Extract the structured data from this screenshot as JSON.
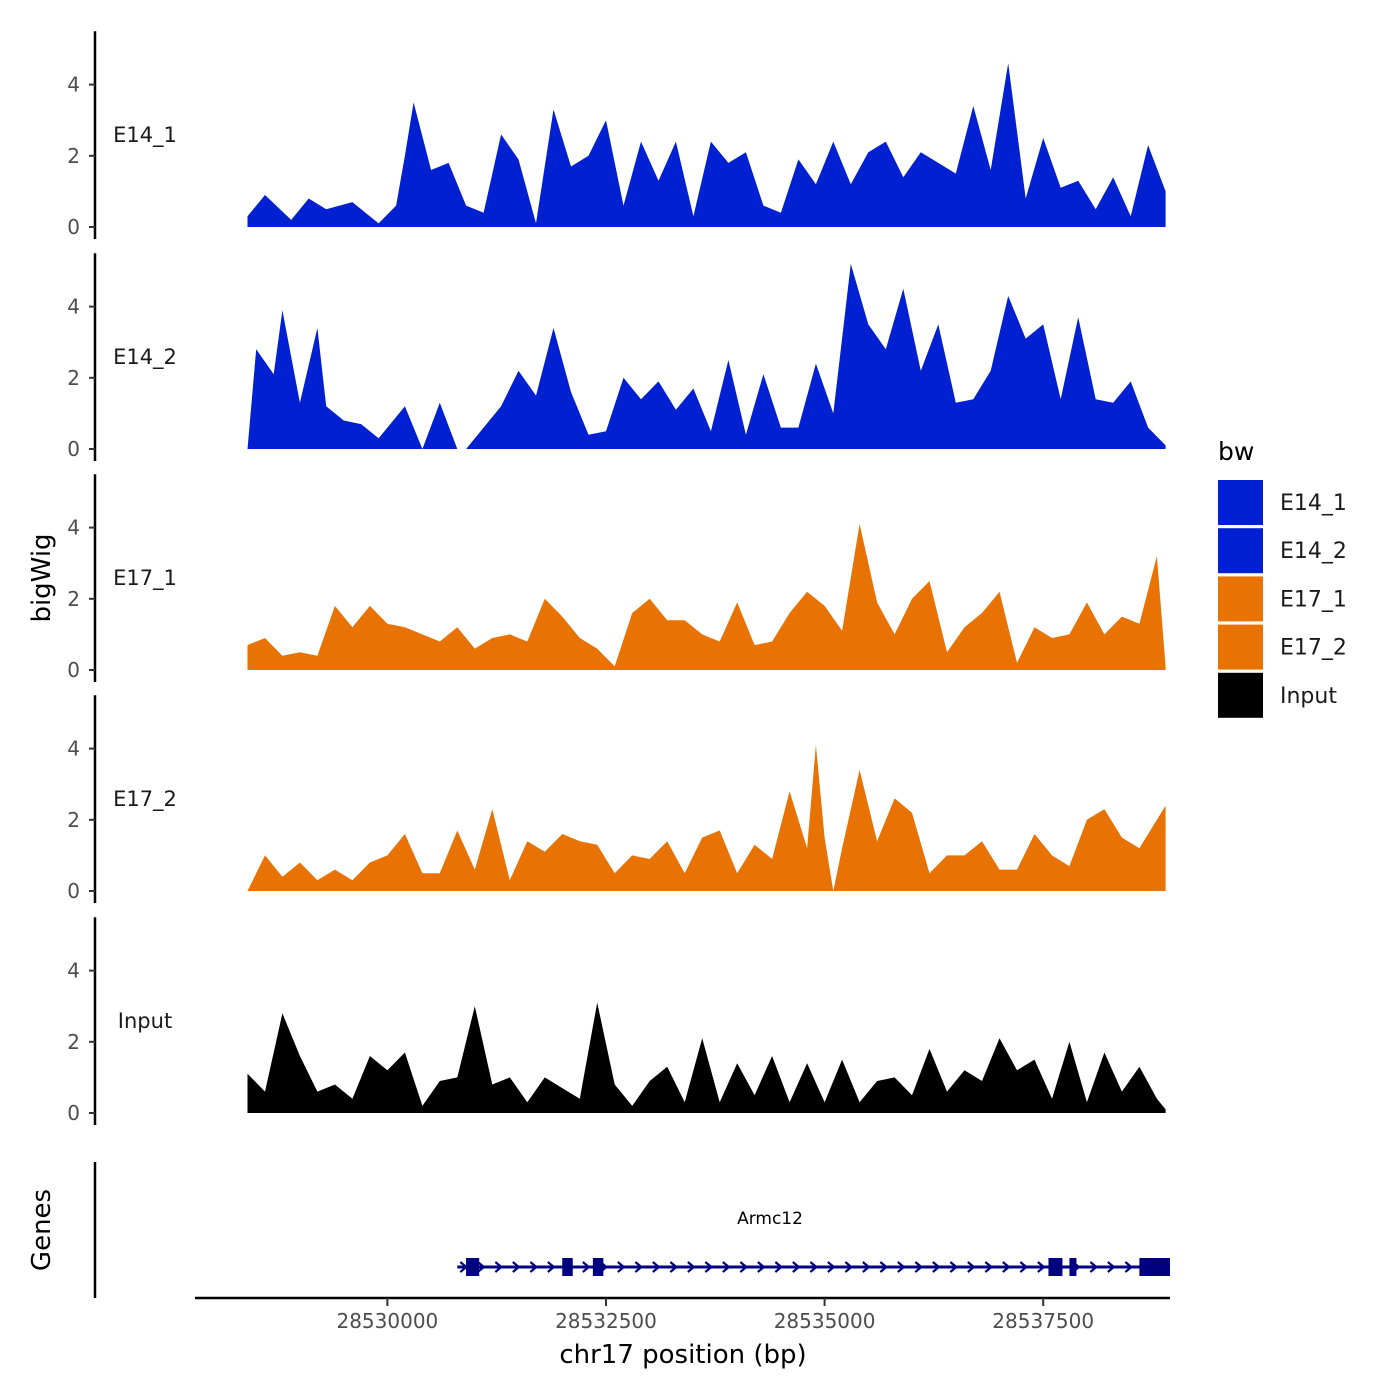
{
  "chart_data": {
    "type": "area",
    "y_axis_title": "bigWig",
    "x_axis_title": "chr17 position (bp)",
    "genes_axis_title": "Genes",
    "xlim": [
      28527800,
      28538950
    ],
    "ylim": [
      0,
      5.5
    ],
    "y_ticks": [
      0,
      2,
      4
    ],
    "x_ticks": [
      28530000,
      28532500,
      28535000,
      28537500
    ],
    "x_tick_labels": [
      "28530000",
      "28532500",
      "28535000",
      "28537500"
    ],
    "series": [
      {
        "name": "E14_1",
        "color": "#0020D2",
        "x": [
          28528400,
          28528600,
          28528900,
          28529100,
          28529300,
          28529600,
          28529900,
          28530100,
          28530200,
          28530300,
          28530500,
          28530700,
          28530900,
          28531100,
          28531300,
          28531500,
          28531700,
          28531900,
          28532100,
          28532300,
          28532500,
          28532700,
          28532900,
          28533100,
          28533300,
          28533500,
          28533700,
          28533900,
          28534100,
          28534300,
          28534500,
          28534700,
          28534900,
          28535100,
          28535300,
          28535500,
          28535700,
          28535900,
          28536100,
          28536300,
          28536500,
          28536700,
          28536900,
          28537100,
          28537300,
          28537500,
          28537700,
          28537900,
          28538100,
          28538300,
          28538500,
          28538700,
          28538900
        ],
        "y": [
          0.3,
          0.9,
          0.2,
          0.8,
          0.5,
          0.7,
          0.1,
          0.6,
          2.0,
          3.5,
          1.6,
          1.8,
          0.6,
          0.4,
          2.6,
          1.9,
          0.1,
          3.3,
          1.7,
          2.0,
          3.0,
          0.6,
          2.4,
          1.3,
          2.4,
          0.3,
          2.4,
          1.8,
          2.1,
          0.6,
          0.4,
          1.9,
          1.2,
          2.4,
          1.2,
          2.1,
          2.4,
          1.4,
          2.1,
          1.8,
          1.5,
          3.4,
          1.6,
          4.6,
          0.8,
          2.5,
          1.1,
          1.3,
          0.5,
          1.4,
          0.3,
          2.3,
          1.0
        ]
      },
      {
        "name": "E14_2",
        "color": "#0020D2",
        "x": [
          28528400,
          28528500,
          28528700,
          28528800,
          28529000,
          28529200,
          28529300,
          28529500,
          28529700,
          28529900,
          28530000,
          28530200,
          28530400,
          28530600,
          28530800,
          28530900,
          28531100,
          28531300,
          28531500,
          28531700,
          28531900,
          28532100,
          28532300,
          28532500,
          28532700,
          28532900,
          28533100,
          28533300,
          28533500,
          28533700,
          28533900,
          28534100,
          28534300,
          28534500,
          28534700,
          28534900,
          28535100,
          28535300,
          28535500,
          28535700,
          28535900,
          28536100,
          28536300,
          28536500,
          28536700,
          28536900,
          28537100,
          28537300,
          28537500,
          28537700,
          28537900,
          28538100,
          28538300,
          28538500,
          28538700,
          28538900
        ],
        "y": [
          0.0,
          2.8,
          2.1,
          3.9,
          1.3,
          3.4,
          1.2,
          0.8,
          0.7,
          0.3,
          0.6,
          1.2,
          0.0,
          1.3,
          0.0,
          0.0,
          0.6,
          1.2,
          2.2,
          1.5,
          3.4,
          1.6,
          0.4,
          0.5,
          2.0,
          1.4,
          1.9,
          1.1,
          1.7,
          0.5,
          2.5,
          0.4,
          2.1,
          0.6,
          0.6,
          2.4,
          1.0,
          5.2,
          3.5,
          2.8,
          4.5,
          2.2,
          3.5,
          1.3,
          1.4,
          2.2,
          4.3,
          3.1,
          3.5,
          1.4,
          3.7,
          1.4,
          1.3,
          1.9,
          0.6,
          0.1
        ]
      },
      {
        "name": "E17_1",
        "color": "#E87304",
        "x": [
          28528400,
          28528600,
          28528800,
          28529000,
          28529200,
          28529400,
          28529600,
          28529800,
          28530000,
          28530200,
          28530400,
          28530600,
          28530800,
          28531000,
          28531200,
          28531400,
          28531600,
          28531800,
          28532000,
          28532200,
          28532400,
          28532600,
          28532800,
          28533000,
          28533200,
          28533400,
          28533600,
          28533800,
          28534000,
          28534200,
          28534400,
          28534600,
          28534800,
          28535000,
          28535200,
          28535400,
          28535600,
          28535800,
          28536000,
          28536200,
          28536400,
          28536600,
          28536800,
          28537000,
          28537200,
          28537400,
          28537600,
          28537800,
          28538000,
          28538200,
          28538400,
          28538600,
          28538800,
          28538900
        ],
        "y": [
          0.7,
          0.9,
          0.4,
          0.5,
          0.4,
          1.8,
          1.2,
          1.8,
          1.3,
          1.2,
          1.0,
          0.8,
          1.2,
          0.6,
          0.9,
          1.0,
          0.8,
          2.0,
          1.5,
          0.9,
          0.6,
          0.1,
          1.6,
          2.0,
          1.4,
          1.4,
          1.0,
          0.8,
          1.9,
          0.7,
          0.8,
          1.6,
          2.2,
          1.8,
          1.1,
          4.1,
          1.9,
          1.0,
          2.0,
          2.5,
          0.5,
          1.2,
          1.6,
          2.2,
          0.2,
          1.2,
          0.9,
          1.0,
          1.9,
          1.0,
          1.5,
          1.3,
          3.2,
          0.1
        ]
      },
      {
        "name": "E17_2",
        "color": "#E87304",
        "x": [
          28528400,
          28528600,
          28528800,
          28529000,
          28529200,
          28529400,
          28529600,
          28529800,
          28530000,
          28530200,
          28530400,
          28530600,
          28530800,
          28531000,
          28531200,
          28531400,
          28531600,
          28531800,
          28532000,
          28532200,
          28532400,
          28532600,
          28532800,
          28533000,
          28533200,
          28533400,
          28533600,
          28533800,
          28534000,
          28534200,
          28534400,
          28534600,
          28534800,
          28534900,
          28535000,
          28535100,
          28535200,
          28535400,
          28535600,
          28535800,
          28536000,
          28536200,
          28536400,
          28536600,
          28536800,
          28537000,
          28537200,
          28537400,
          28537600,
          28537800,
          28538000,
          28538200,
          28538400,
          28538600,
          28538800,
          28538900
        ],
        "y": [
          0.0,
          1.0,
          0.4,
          0.8,
          0.3,
          0.6,
          0.3,
          0.8,
          1.0,
          1.6,
          0.5,
          0.5,
          1.7,
          0.6,
          2.3,
          0.3,
          1.4,
          1.1,
          1.6,
          1.4,
          1.3,
          0.5,
          1.0,
          0.9,
          1.4,
          0.5,
          1.5,
          1.7,
          0.5,
          1.3,
          0.9,
          2.8,
          1.2,
          4.1,
          1.5,
          0.0,
          1.2,
          3.4,
          1.4,
          2.6,
          2.2,
          0.5,
          1.0,
          1.0,
          1.4,
          0.6,
          0.6,
          1.6,
          1.0,
          0.7,
          2.0,
          2.3,
          1.5,
          1.2,
          2.0,
          2.4
        ]
      },
      {
        "name": "Input",
        "color": "#000000",
        "x": [
          28528400,
          28528600,
          28528800,
          28529000,
          28529200,
          28529400,
          28529600,
          28529800,
          28530000,
          28530200,
          28530400,
          28530600,
          28530800,
          28531000,
          28531200,
          28531400,
          28531600,
          28531800,
          28532000,
          28532200,
          28532400,
          28532600,
          28532800,
          28533000,
          28533200,
          28533400,
          28533600,
          28533800,
          28534000,
          28534200,
          28534400,
          28534600,
          28534800,
          28535000,
          28535200,
          28535400,
          28535600,
          28535800,
          28536000,
          28536200,
          28536400,
          28536600,
          28536800,
          28537000,
          28537200,
          28537400,
          28537600,
          28537800,
          28538000,
          28538200,
          28538400,
          28538600,
          28538800,
          28538900
        ],
        "y": [
          1.1,
          0.6,
          2.8,
          1.6,
          0.6,
          0.8,
          0.4,
          1.6,
          1.2,
          1.7,
          0.2,
          0.9,
          1.0,
          3.0,
          0.8,
          1.0,
          0.3,
          1.0,
          0.7,
          0.4,
          3.1,
          0.8,
          0.2,
          0.9,
          1.3,
          0.3,
          2.1,
          0.3,
          1.4,
          0.5,
          1.6,
          0.3,
          1.4,
          0.3,
          1.5,
          0.3,
          0.9,
          1.0,
          0.5,
          1.8,
          0.6,
          1.2,
          0.9,
          2.1,
          1.2,
          1.5,
          0.4,
          2.0,
          0.3,
          1.7,
          0.6,
          1.3,
          0.4,
          0.1
        ]
      }
    ],
    "gene_track": {
      "name": "Armc12",
      "color": "#000080",
      "start": 28530800,
      "end": 28538950,
      "strand": "+",
      "exons": [
        [
          28530900,
          28531050
        ],
        [
          28532000,
          28532120
        ],
        [
          28532350,
          28532470
        ],
        [
          28537560,
          28537720
        ],
        [
          28537800,
          28537880
        ],
        [
          28538600,
          28538950
        ]
      ]
    },
    "legend": {
      "title": "bw",
      "position": "right",
      "entries": [
        {
          "label": "E14_1",
          "color": "#0020D2"
        },
        {
          "label": "E14_2",
          "color": "#0020D2"
        },
        {
          "label": "E17_1",
          "color": "#E87304"
        },
        {
          "label": "E17_2",
          "color": "#E87304"
        },
        {
          "label": "Input",
          "color": "#000000"
        }
      ]
    }
  }
}
